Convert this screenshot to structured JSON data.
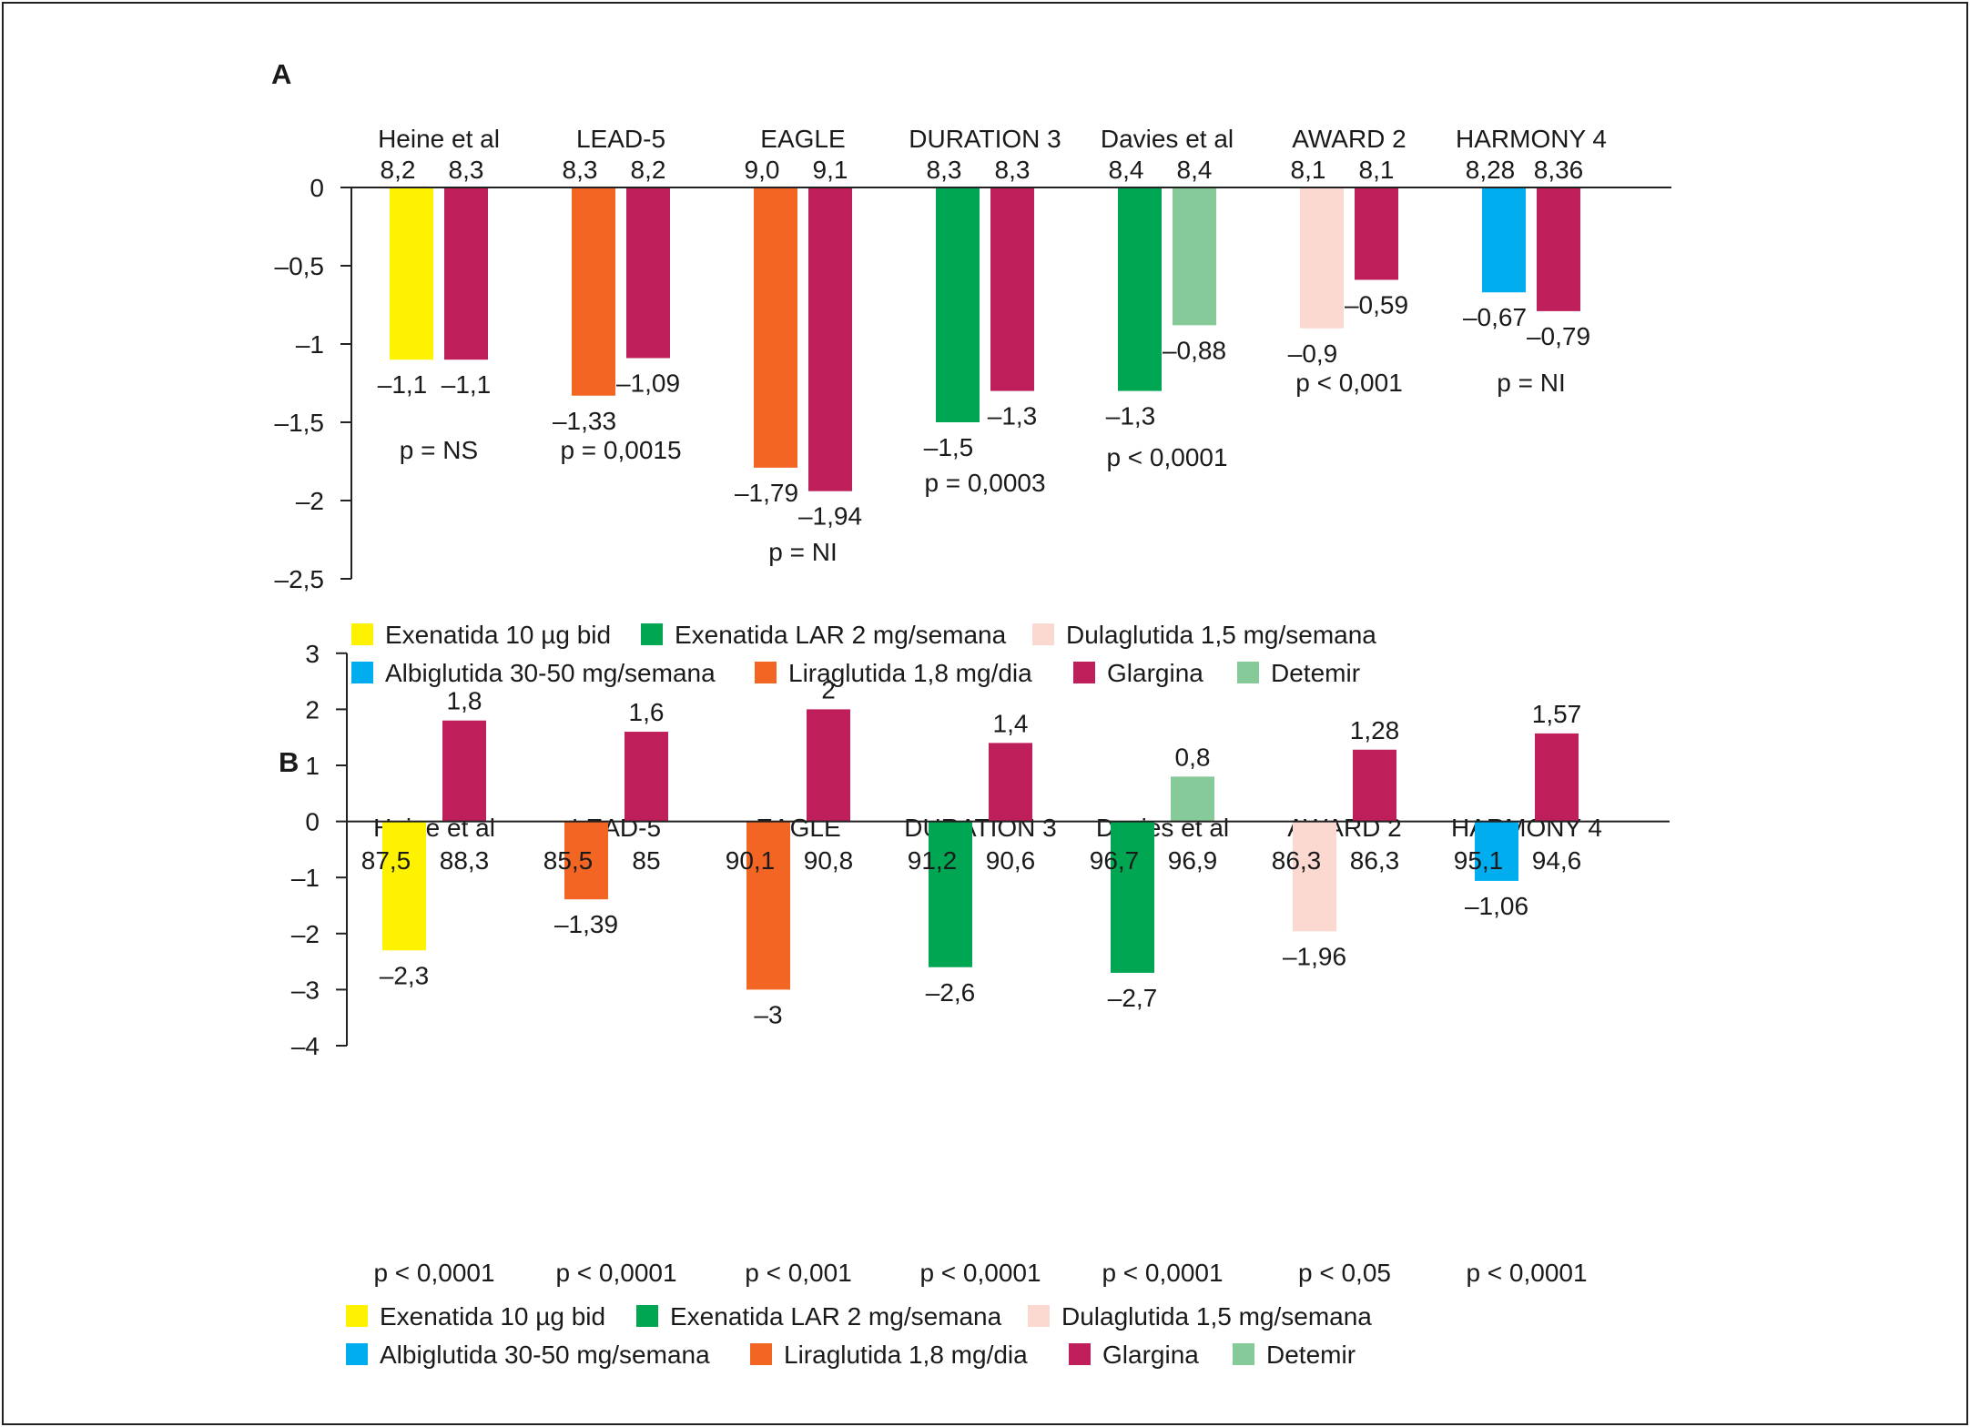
{
  "colors": {
    "exenatida": "#fff200",
    "exenatida_lar": "#00a651",
    "dulaglutida": "#fbd9d0",
    "albiglutida": "#00aeef",
    "liraglutida": "#f26522",
    "glargina": "#be1e5a",
    "detemir": "#86ca99"
  },
  "legend": [
    {
      "key": "exenatida",
      "label": "Exenatida 10 µg bid"
    },
    {
      "key": "exenatida_lar",
      "label": "Exenatida LAR 2 mg/semana"
    },
    {
      "key": "dulaglutida",
      "label": "Dulaglutida 1,5 mg/semana"
    },
    {
      "key": "albiglutida",
      "label": "Albiglutida 30-50 mg/semana"
    },
    {
      "key": "liraglutida",
      "label": "Liraglutida 1,8 mg/dia"
    },
    {
      "key": "glargina",
      "label": "Glargina"
    },
    {
      "key": "detemir",
      "label": "Detemir"
    }
  ],
  "chart_data": [
    {
      "panel": "A",
      "type": "bar",
      "ylim": [
        -2.5,
        0
      ],
      "yticks": [
        0,
        -0.5,
        -1,
        -1.5,
        -2,
        -2.5
      ],
      "ytick_labels": [
        "0",
        "–0,5",
        "–1",
        "–1,5",
        "–2",
        "–2,5"
      ],
      "groups": [
        {
          "study": "Heine et al",
          "p": "p = NS",
          "bars": [
            {
              "key": "exenatida",
              "value": -1.1,
              "baseline": "8,2",
              "label": "–1,1"
            },
            {
              "key": "glargina",
              "value": -1.1,
              "baseline": "8,3",
              "label": "–1,1"
            }
          ]
        },
        {
          "study": "LEAD-5",
          "p": "p = 0,0015",
          "bars": [
            {
              "key": "liraglutida",
              "value": -1.33,
              "baseline": "8,3",
              "label": "–1,33"
            },
            {
              "key": "glargina",
              "value": -1.09,
              "baseline": "8,2",
              "label": "–1,09"
            }
          ]
        },
        {
          "study": "EAGLE",
          "p": "p = NI",
          "bars": [
            {
              "key": "liraglutida",
              "value": -1.79,
              "baseline": "9,0",
              "label": "–1,79"
            },
            {
              "key": "glargina",
              "value": -1.94,
              "baseline": "9,1",
              "label": "–1,94"
            }
          ]
        },
        {
          "study": "DURATION 3",
          "p": "p = 0,0003",
          "bars": [
            {
              "key": "exenatida_lar",
              "value": -1.5,
              "baseline": "8,3",
              "label": "–1,5"
            },
            {
              "key": "glargina",
              "value": -1.3,
              "baseline": "8,3",
              "label": "–1,3"
            }
          ]
        },
        {
          "study": "Davies et al",
          "p": "p < 0,0001",
          "bars": [
            {
              "key": "exenatida_lar",
              "value": -1.3,
              "baseline": "8,4",
              "label": "–1,3"
            },
            {
              "key": "detemir",
              "value": -0.88,
              "baseline": "8,4",
              "label": "–0,88"
            }
          ]
        },
        {
          "study": "AWARD 2",
          "p": "p < 0,001",
          "bars": [
            {
              "key": "dulaglutida",
              "value": -0.9,
              "baseline": "8,1",
              "label": "–0,9"
            },
            {
              "key": "glargina",
              "value": -0.59,
              "baseline": "8,1",
              "label": "–0,59"
            }
          ]
        },
        {
          "study": "HARMONY 4",
          "p": "p = NI",
          "bars": [
            {
              "key": "albiglutida",
              "value": -0.67,
              "baseline": "8,28",
              "label": "–0,67"
            },
            {
              "key": "glargina",
              "value": -0.79,
              "baseline": "8,36",
              "label": "–0,79"
            }
          ]
        }
      ]
    },
    {
      "panel": "B",
      "type": "bar",
      "ylim": [
        -4,
        3
      ],
      "yticks": [
        3,
        2,
        1,
        0,
        -1,
        -2,
        -3,
        -4
      ],
      "ytick_labels": [
        "3",
        "2",
        "1",
        "0",
        "–1",
        "–2",
        "–3",
        "–4"
      ],
      "groups": [
        {
          "study": "Heine et al",
          "p": "p < 0,0001",
          "bars": [
            {
              "key": "exenatida",
              "value": -2.3,
              "baseline": "87,5",
              "label": "–2,3"
            },
            {
              "key": "glargina",
              "value": 1.8,
              "baseline": "88,3",
              "label": "1,8"
            }
          ]
        },
        {
          "study": "LEAD-5",
          "p": "p < 0,0001",
          "bars": [
            {
              "key": "liraglutida",
              "value": -1.39,
              "baseline": "85,5",
              "label": "–1,39"
            },
            {
              "key": "glargina",
              "value": 1.6,
              "baseline": "85",
              "label": "1,6"
            }
          ]
        },
        {
          "study": "EAGLE",
          "p": "p < 0,001",
          "bars": [
            {
              "key": "liraglutida",
              "value": -3,
              "baseline": "90,1",
              "label": "–3"
            },
            {
              "key": "glargina",
              "value": 2,
              "baseline": "90,8",
              "label": "2"
            }
          ]
        },
        {
          "study": "DURATION 3",
          "p": "p < 0,0001",
          "bars": [
            {
              "key": "exenatida_lar",
              "value": -2.6,
              "baseline": "91,2",
              "label": "–2,6"
            },
            {
              "key": "glargina",
              "value": 1.4,
              "baseline": "90,6",
              "label": "1,4"
            }
          ]
        },
        {
          "study": "Davies et al",
          "p": "p < 0,0001",
          "bars": [
            {
              "key": "exenatida_lar",
              "value": -2.7,
              "baseline": "96,7",
              "label": "–2,7"
            },
            {
              "key": "detemir",
              "value": 0.8,
              "baseline": "96,9",
              "label": "0,8"
            }
          ]
        },
        {
          "study": "AWARD 2",
          "p": "p < 0,05",
          "bars": [
            {
              "key": "dulaglutida",
              "value": -1.96,
              "baseline": "86,3",
              "label": "–1,96"
            },
            {
              "key": "glargina",
              "value": 1.28,
              "baseline": "86,3",
              "label": "1,28"
            }
          ]
        },
        {
          "study": "HARMONY 4",
          "p": "p < 0,0001",
          "bars": [
            {
              "key": "albiglutida",
              "value": -1.06,
              "baseline": "95,1",
              "label": "–1,06"
            },
            {
              "key": "glargina",
              "value": 1.57,
              "baseline": "94,6",
              "label": "1,57"
            }
          ]
        }
      ]
    }
  ]
}
